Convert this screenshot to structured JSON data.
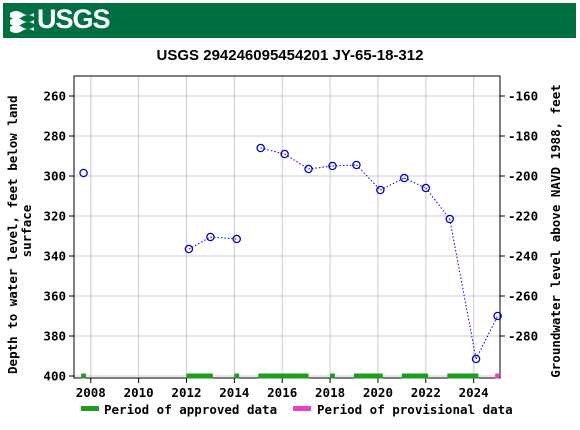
{
  "header": {
    "logo_text": "USGS",
    "banner_color": "#006f41"
  },
  "chart_data": {
    "type": "scatter",
    "title": "USGS 294246095454201 JY-65-18-312",
    "ylabel_left": "Depth to water level, feet below land surface",
    "ylabel_right": "Groundwater level above NAVD 1988, feet",
    "y_inverted": true,
    "ylim_left": [
      250,
      401
    ],
    "ylim_right": [
      -150,
      -301
    ],
    "xlim": [
      2007.3,
      2025.1
    ],
    "left_ticks": [
      260,
      280,
      300,
      320,
      340,
      360,
      380,
      400
    ],
    "right_ticks": [
      -160,
      -180,
      -200,
      -220,
      -240,
      -260,
      -280
    ],
    "x_ticks": [
      2008,
      2010,
      2012,
      2014,
      2016,
      2018,
      2020,
      2022,
      2024
    ],
    "grid": true,
    "series": [
      {
        "name": "",
        "marker": "circle",
        "color": "#0000cc",
        "line_style": "dotted",
        "points": [
          {
            "x": 2007.7,
            "y": 298.5
          },
          {
            "x": 2012.1,
            "y": 336.5
          },
          {
            "x": 2013.0,
            "y": 330.5
          },
          {
            "x": 2014.1,
            "y": 331.5
          },
          {
            "x": 2015.1,
            "y": 286.0
          },
          {
            "x": 2016.1,
            "y": 289.0
          },
          {
            "x": 2017.1,
            "y": 296.5
          },
          {
            "x": 2018.1,
            "y": 295.0
          },
          {
            "x": 2019.1,
            "y": 294.5
          },
          {
            "x": 2020.1,
            "y": 307.0
          },
          {
            "x": 2021.1,
            "y": 301.0
          },
          {
            "x": 2022.0,
            "y": 306.0
          },
          {
            "x": 2023.0,
            "y": 321.5
          },
          {
            "x": 2024.1,
            "y": 391.5
          },
          {
            "x": 2025.0,
            "y": 370.0
          }
        ]
      }
    ],
    "segments_break_after": [
      0,
      3
    ],
    "periods": {
      "approved": {
        "label": "Period of approved data",
        "color": "#1f9b1f",
        "ranges": [
          [
            2007.6,
            2007.8
          ],
          [
            2012.0,
            2013.1
          ],
          [
            2014.0,
            2014.2
          ],
          [
            2015.0,
            2017.1
          ],
          [
            2018.0,
            2018.2
          ],
          [
            2019.0,
            2020.2
          ],
          [
            2021.0,
            2022.1
          ],
          [
            2022.9,
            2024.2
          ]
        ]
      },
      "provisional": {
        "label": "Period of provisional data",
        "color": "#e640cc",
        "ranges": [
          [
            2024.9,
            2025.1
          ]
        ]
      }
    },
    "legend_position": "bottom"
  }
}
